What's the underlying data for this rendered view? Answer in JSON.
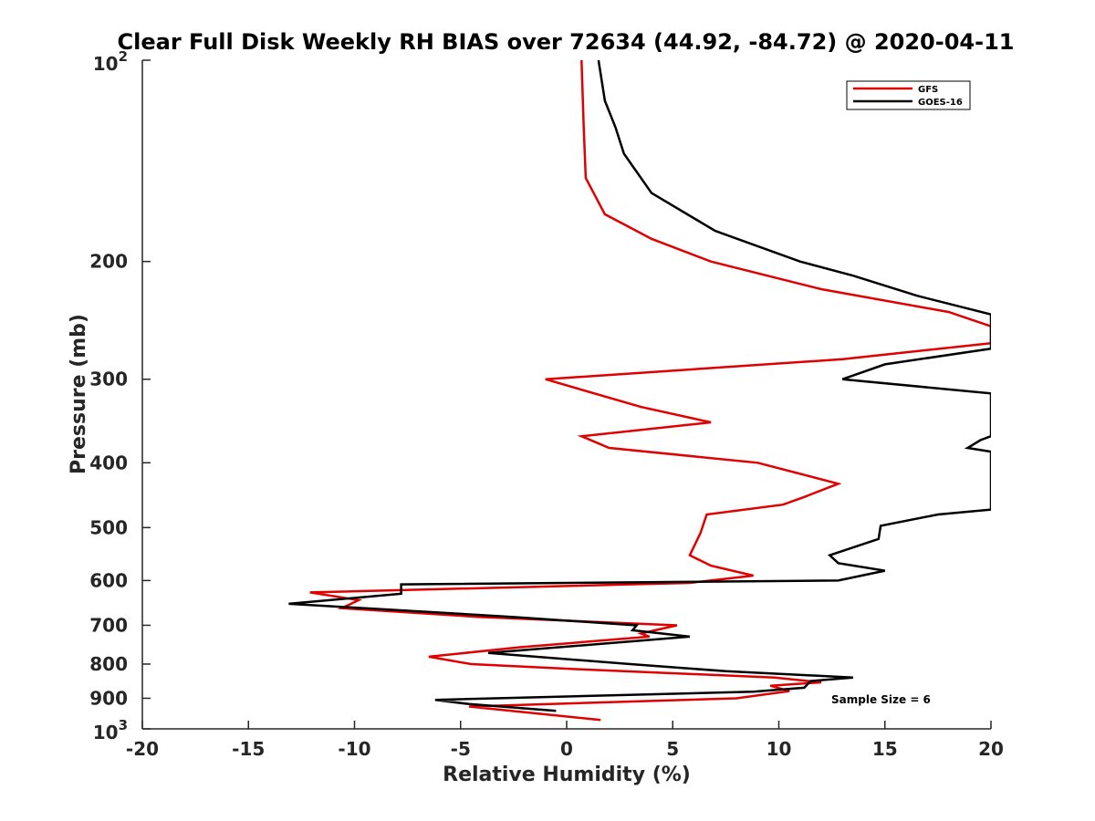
{
  "chart_data": {
    "type": "line",
    "title": "Clear Full Disk Weekly RH BIAS over 72634 (44.92, -84.72) @ 2020-04-11",
    "xlabel": "Relative Humidity (%)",
    "ylabel": "Pressure (mb)",
    "xlim": [
      -20,
      20
    ],
    "ylim": [
      100,
      1000
    ],
    "yscale": "log",
    "y_reversed": true,
    "x_ticks": [
      -20,
      -15,
      -10,
      -5,
      0,
      5,
      10,
      15,
      20
    ],
    "x_tick_labels": [
      "-20",
      "-15",
      "-10",
      "-5",
      "0",
      "5",
      "10",
      "15",
      "20"
    ],
    "y_ticks": [
      200,
      300,
      400,
      500,
      600,
      700,
      800,
      900
    ],
    "y_tick_labels": [
      "200",
      "300",
      "400",
      "500",
      "600",
      "700",
      "800",
      "900"
    ],
    "y_top_label": {
      "base": "10",
      "exp": "2"
    },
    "y_bottom_label": {
      "base": "10",
      "exp": "3"
    },
    "legend_position": "top-right",
    "annotation": "Sample Size = 6",
    "series": [
      {
        "name": "GFS",
        "color": "#e00000",
        "points": [
          [
            0.7,
            100
          ],
          [
            0.8,
            125
          ],
          [
            0.9,
            150
          ],
          [
            1.8,
            170
          ],
          [
            4.0,
            185
          ],
          [
            6.8,
            200
          ],
          [
            12.0,
            220
          ],
          [
            18.0,
            238
          ],
          [
            20.0,
            250
          ],
          [
            20.0,
            265
          ],
          [
            13.0,
            280
          ],
          [
            -1.0,
            300
          ],
          [
            3.5,
            330
          ],
          [
            6.8,
            348
          ],
          [
            0.7,
            365
          ],
          [
            2.0,
            380
          ],
          [
            9.0,
            400
          ],
          [
            12.8,
            430
          ],
          [
            11.2,
            450
          ],
          [
            10.2,
            462
          ],
          [
            6.6,
            478
          ],
          [
            6.3,
            510
          ],
          [
            5.8,
            550
          ],
          [
            6.8,
            570
          ],
          [
            8.8,
            590
          ],
          [
            5.8,
            605
          ],
          [
            -12.1,
            625
          ],
          [
            -9.8,
            642
          ],
          [
            -10.6,
            660
          ],
          [
            -4.2,
            680
          ],
          [
            5.2,
            700
          ],
          [
            3.5,
            720
          ],
          [
            3.9,
            728
          ],
          [
            -2.2,
            755
          ],
          [
            -6.5,
            780
          ],
          [
            -4.5,
            800
          ],
          [
            0.8,
            815
          ],
          [
            9.8,
            838
          ],
          [
            12.0,
            852
          ],
          [
            9.6,
            862
          ],
          [
            10.5,
            878
          ],
          [
            8.0,
            900
          ],
          [
            -4.6,
            926
          ],
          [
            1.6,
            970
          ]
        ]
      },
      {
        "name": "GOES-16",
        "color": "#000000",
        "points": [
          [
            1.5,
            100
          ],
          [
            1.8,
            115
          ],
          [
            2.3,
            126
          ],
          [
            2.7,
            138
          ],
          [
            4.0,
            158
          ],
          [
            7.0,
            180
          ],
          [
            11.0,
            200
          ],
          [
            13.5,
            210
          ],
          [
            16.5,
            225
          ],
          [
            20.0,
            240
          ],
          [
            20.0,
            270
          ],
          [
            15.0,
            285
          ],
          [
            13.0,
            300
          ],
          [
            20.0,
            315
          ],
          [
            20.0,
            365
          ],
          [
            19.5,
            370
          ],
          [
            18.9,
            380
          ],
          [
            20.0,
            385
          ],
          [
            20.0,
            470
          ],
          [
            17.5,
            478
          ],
          [
            14.8,
            497
          ],
          [
            14.7,
            520
          ],
          [
            12.4,
            550
          ],
          [
            12.8,
            565
          ],
          [
            15.0,
            580
          ],
          [
            12.8,
            600
          ],
          [
            -7.8,
            608
          ],
          [
            -7.8,
            628
          ],
          [
            -13.1,
            650
          ],
          [
            -2.6,
            680
          ],
          [
            3.3,
            700
          ],
          [
            3.1,
            712
          ],
          [
            5.8,
            728
          ],
          [
            -3.7,
            770
          ],
          [
            3.0,
            800
          ],
          [
            7.5,
            820
          ],
          [
            13.5,
            838
          ],
          [
            11.5,
            848
          ],
          [
            11.2,
            868
          ],
          [
            8.8,
            880
          ],
          [
            -6.2,
            905
          ],
          [
            -4.6,
            918
          ],
          [
            -0.5,
            940
          ]
        ]
      }
    ]
  }
}
